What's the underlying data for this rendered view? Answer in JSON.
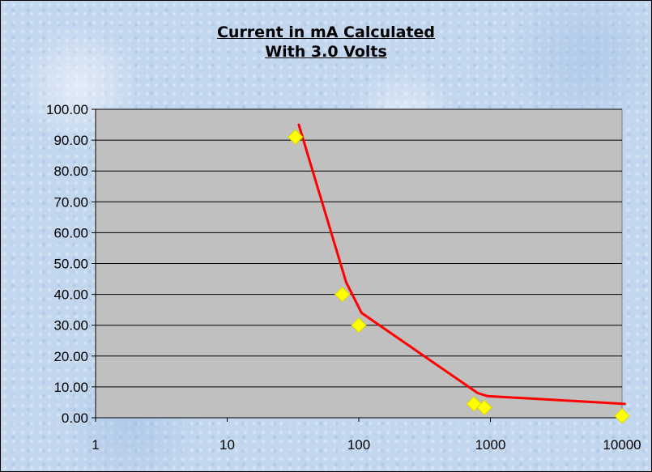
{
  "chart_data": {
    "type": "scatter",
    "title": [
      "Current in mA Calculated",
      "With 3.0 Volts"
    ],
    "xlabel": "",
    "ylabel": "",
    "x_scale": "log",
    "xlim": [
      1,
      10000
    ],
    "ylim": [
      0,
      100
    ],
    "x_ticks": [
      "1",
      "10",
      "100",
      "1000",
      "10000"
    ],
    "y_ticks": [
      "0.00",
      "10.00",
      "20.00",
      "30.00",
      "40.00",
      "50.00",
      "60.00",
      "70.00",
      "80.00",
      "90.00",
      "100.00"
    ],
    "grid": "horizontal",
    "legend": "none",
    "series": [
      {
        "kind": "points",
        "marker": "diamond",
        "color": "#ffff00",
        "points": [
          {
            "x": 33,
            "y": 91
          },
          {
            "x": 75,
            "y": 40
          },
          {
            "x": 100,
            "y": 30
          },
          {
            "x": 750,
            "y": 4.5
          },
          {
            "x": 900,
            "y": 3.3
          },
          {
            "x": 10000,
            "y": 0.6
          }
        ]
      },
      {
        "kind": "line",
        "color": "#ff0000",
        "points": [
          {
            "x": 35,
            "y": 95
          },
          {
            "x": 80,
            "y": 44
          },
          {
            "x": 105,
            "y": 34
          },
          {
            "x": 800,
            "y": 8
          },
          {
            "x": 950,
            "y": 7
          },
          {
            "x": 10500,
            "y": 4.5
          }
        ]
      }
    ],
    "colors": {
      "plot_background": "#c0c0c0",
      "gridline": "#000000"
    }
  }
}
